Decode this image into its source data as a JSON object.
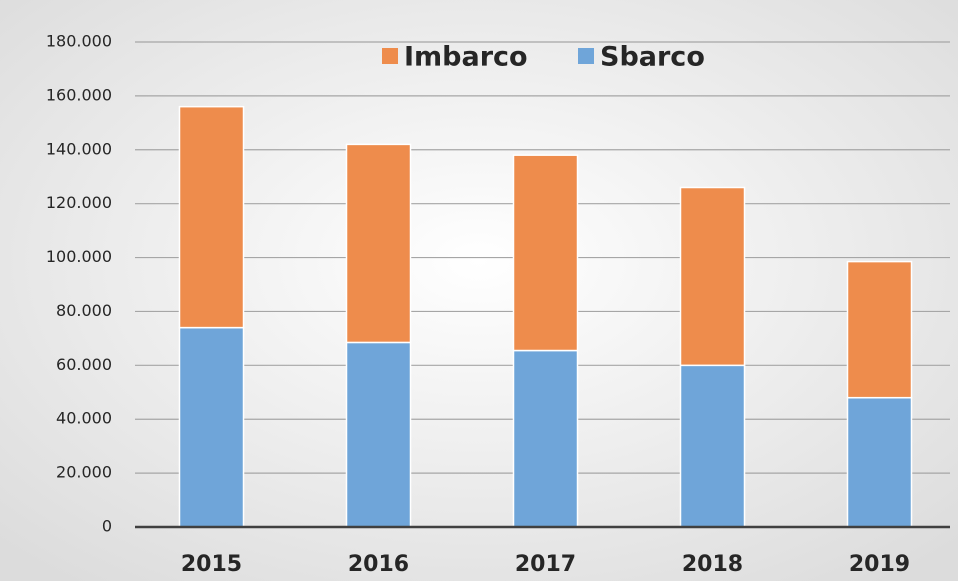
{
  "chart_data": {
    "type": "bar",
    "stacked": true,
    "categories": [
      "2015",
      "2016",
      "2017",
      "2018",
      "2019"
    ],
    "series": [
      {
        "name": "Imbarco",
        "color": "#ee8c4c",
        "values": [
          82000,
          73500,
          72500,
          66000,
          50500
        ]
      },
      {
        "name": "Sbarco",
        "color": "#6fa5d9",
        "values": [
          74000,
          68500,
          65500,
          60000,
          48000
        ]
      }
    ],
    "ylim": [
      0,
      180000
    ],
    "yticks": [
      0,
      {
        "value": 20000,
        "label": "20.000"
      },
      {
        "value": 40000,
        "label": "40.000"
      },
      {
        "value": 60000,
        "label": "60.000"
      },
      {
        "value": 80000,
        "label": "80.000"
      },
      {
        "value": 100000,
        "label": "100.000"
      },
      {
        "value": 120000,
        "label": "120.000"
      },
      {
        "value": 140000,
        "label": "140.000"
      },
      {
        "value": 160000,
        "label": "160.000"
      },
      {
        "value": 180000,
        "label": "180.000"
      }
    ],
    "grid": true,
    "legend": "top"
  }
}
